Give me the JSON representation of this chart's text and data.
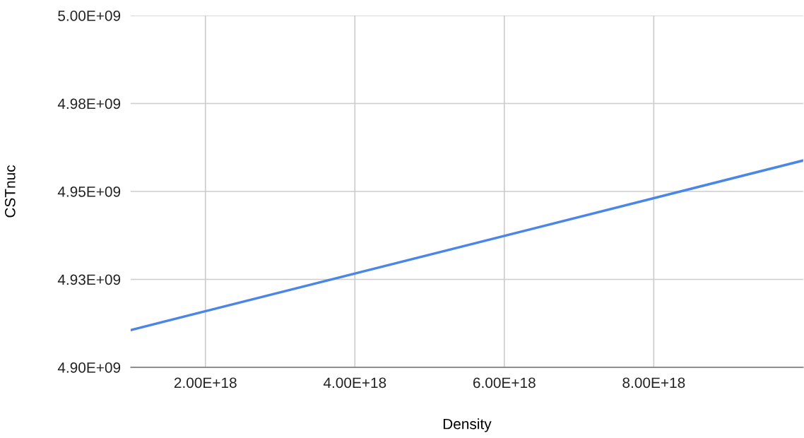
{
  "chart_data": {
    "type": "line",
    "xlabel": "Density",
    "ylabel": "CSTnuc",
    "x": [
      1e+18,
      1e+19
    ],
    "series": [
      {
        "color": "#4a86e8",
        "values": [
          4910600000.0,
          4958800000.0
        ]
      }
    ],
    "xlim": [
      1e+18,
      1e+19
    ],
    "xticks": [
      {
        "value": 2e+18,
        "label": "2.00E+18"
      },
      {
        "value": 4e+18,
        "label": "4.00E+18"
      },
      {
        "value": 6e+18,
        "label": "6.00E+18"
      },
      {
        "value": 8e+18,
        "label": "8.00E+18"
      }
    ],
    "ylim": [
      4900000000.0,
      5000000000.0
    ],
    "yticks": [
      {
        "value": 4900000000.0,
        "label": "4.90E+09"
      },
      {
        "value": 4925000000.0,
        "label": "4.93E+09"
      },
      {
        "value": 4950000000.0,
        "label": "4.95E+09"
      },
      {
        "value": 4975000000.0,
        "label": "4.98E+09"
      },
      {
        "value": 5000000000.0,
        "label": "5.00E+09"
      }
    ],
    "grid": true,
    "marker": "none",
    "line_style": "solid"
  }
}
